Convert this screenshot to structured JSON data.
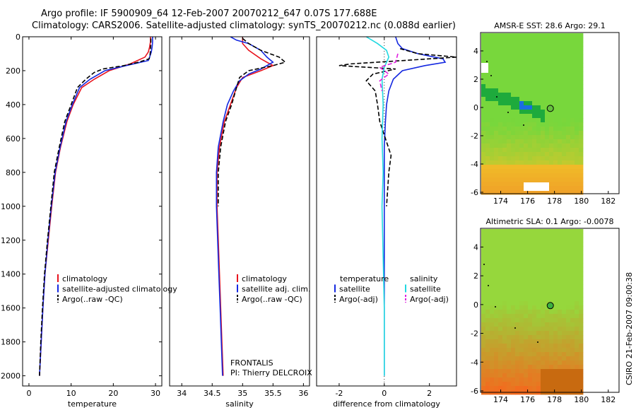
{
  "header": {
    "line1": "Argo profile: IF 5900909_64 12-Feb-2007 20070212_647 0.07S 177.688E",
    "line2": "Climatology: CARS2006. Satellite-adjusted climatology: synTS_20070212.nc (0.088d earlier)"
  },
  "side_label": "CSIRO 21-Feb-2007 09:00:38",
  "colors": {
    "climatology": "#e8141e",
    "satellite": "#1428e0",
    "argo": "#000000",
    "satellite_salinity": "#20d8e0",
    "argo_salinity_adj": "#e020e0"
  },
  "chart_data": [
    {
      "type": "line",
      "id": "temperature",
      "xlabel": "temperature",
      "ylabel": "",
      "xlim": [
        -1.5,
        31.5
      ],
      "ylim": [
        0,
        2060
      ],
      "xticks": [
        0,
        10,
        20,
        30
      ],
      "yticks": [
        0,
        200,
        400,
        600,
        800,
        1000,
        1200,
        1400,
        1600,
        1800,
        2000
      ],
      "y_reversed": true,
      "legend": [
        "climatology",
        "satellite-adjusted climatology",
        "Argo(..raw -QC)"
      ],
      "series": [
        {
          "name": "climatology",
          "color": "#e8141e",
          "dash": "",
          "points": [
            [
              28.8,
              0
            ],
            [
              28.8,
              30
            ],
            [
              28.6,
              60
            ],
            [
              28.3,
              90
            ],
            [
              27.5,
              120
            ],
            [
              24.0,
              160
            ],
            [
              19.0,
              200
            ],
            [
              15.5,
              250
            ],
            [
              12.5,
              300
            ],
            [
              10.5,
              400
            ],
            [
              9.0,
              500
            ],
            [
              7.5,
              650
            ],
            [
              6.3,
              800
            ],
            [
              5.4,
              1000
            ],
            [
              4.6,
              1200
            ],
            [
              3.8,
              1400
            ],
            [
              3.3,
              1600
            ],
            [
              2.9,
              1800
            ],
            [
              2.5,
              2000
            ]
          ]
        },
        {
          "name": "satellite-adjusted climatology",
          "color": "#1428e0",
          "dash": "",
          "points": [
            [
              29.3,
              0
            ],
            [
              29.3,
              30
            ],
            [
              29.2,
              60
            ],
            [
              29.0,
              90
            ],
            [
              28.6,
              120
            ],
            [
              28.3,
              140
            ],
            [
              23.0,
              170
            ],
            [
              18.0,
              200
            ],
            [
              14.5,
              250
            ],
            [
              12.0,
              300
            ],
            [
              10.3,
              400
            ],
            [
              8.8,
              500
            ],
            [
              7.4,
              650
            ],
            [
              6.2,
              800
            ],
            [
              5.3,
              1000
            ],
            [
              4.5,
              1200
            ],
            [
              3.8,
              1400
            ],
            [
              3.3,
              1600
            ],
            [
              2.9,
              1800
            ],
            [
              2.5,
              2000
            ]
          ]
        },
        {
          "name": "Argo(..raw -QC)",
          "color": "#000000",
          "dash": "6,3",
          "points": [
            [
              28.9,
              10
            ],
            [
              28.9,
              40
            ],
            [
              28.8,
              80
            ],
            [
              28.7,
              110
            ],
            [
              28.5,
              130
            ],
            [
              26.0,
              150
            ],
            [
              22.5,
              170
            ],
            [
              17.5,
              190
            ],
            [
              15.5,
              210
            ],
            [
              13.5,
              250
            ],
            [
              11.5,
              300
            ],
            [
              10.0,
              400
            ],
            [
              8.5,
              500
            ],
            [
              7.2,
              650
            ],
            [
              6.0,
              800
            ],
            [
              5.2,
              1000
            ],
            [
              4.4,
              1200
            ],
            [
              3.7,
              1400
            ],
            [
              3.2,
              1600
            ],
            [
              2.8,
              1800
            ],
            [
              2.5,
              2000
            ]
          ]
        }
      ]
    },
    {
      "type": "line",
      "id": "salinity",
      "xlabel": "salinity",
      "ylabel": "",
      "xlim": [
        33.8,
        36.1
      ],
      "ylim": [
        0,
        2060
      ],
      "xticks": [
        34,
        34.5,
        35,
        35.5,
        36
      ],
      "yticks": [],
      "y_reversed": true,
      "legend": [
        "climatology",
        "satellite adj. clim.",
        "Argo(..raw -QC)"
      ],
      "annotation": [
        "FRONTALIS",
        "PI: Thierry DELCROIX"
      ],
      "series": [
        {
          "name": "climatology",
          "color": "#e8141e",
          "dash": "",
          "points": [
            [
              35.0,
              0
            ],
            [
              35.0,
              40
            ],
            [
              35.1,
              80
            ],
            [
              35.3,
              130
            ],
            [
              35.5,
              170
            ],
            [
              35.3,
              200
            ],
            [
              35.0,
              240
            ],
            [
              34.9,
              300
            ],
            [
              34.8,
              400
            ],
            [
              34.7,
              500
            ],
            [
              34.62,
              650
            ],
            [
              34.58,
              800
            ],
            [
              34.58,
              1000
            ],
            [
              34.6,
              1200
            ],
            [
              34.62,
              1400
            ],
            [
              34.64,
              1600
            ],
            [
              34.66,
              1800
            ],
            [
              34.68,
              2000
            ]
          ]
        },
        {
          "name": "satellite adj. clim.",
          "color": "#1428e0",
          "dash": "",
          "points": [
            [
              34.8,
              0
            ],
            [
              34.9,
              20
            ],
            [
              35.1,
              40
            ],
            [
              35.3,
              80
            ],
            [
              35.4,
              120
            ],
            [
              35.5,
              150
            ],
            [
              35.3,
              190
            ],
            [
              35.1,
              220
            ],
            [
              34.95,
              260
            ],
            [
              34.85,
              320
            ],
            [
              34.75,
              400
            ],
            [
              34.68,
              500
            ],
            [
              34.6,
              650
            ],
            [
              34.57,
              800
            ],
            [
              34.57,
              1000
            ],
            [
              34.59,
              1200
            ],
            [
              34.61,
              1400
            ],
            [
              34.63,
              1600
            ],
            [
              34.65,
              1800
            ],
            [
              34.67,
              2000
            ]
          ]
        },
        {
          "name": "Argo(..raw -QC)",
          "color": "#000000",
          "dash": "6,3",
          "points": [
            [
              35.0,
              10
            ],
            [
              35.1,
              40
            ],
            [
              35.3,
              80
            ],
            [
              35.6,
              120
            ],
            [
              35.7,
              150
            ],
            [
              35.5,
              170
            ],
            [
              35.1,
              200
            ],
            [
              34.95,
              240
            ],
            [
              34.9,
              300
            ],
            [
              34.82,
              400
            ],
            [
              34.72,
              500
            ],
            [
              34.64,
              650
            ],
            [
              34.6,
              800
            ],
            [
              34.6,
              1000
            ]
          ]
        }
      ]
    },
    {
      "type": "line",
      "id": "difference",
      "xlabel": "difference from climatology",
      "ylabel": "",
      "xlim": [
        -3.0,
        3.2
      ],
      "ylim": [
        0,
        2060
      ],
      "xticks": [
        -2,
        0,
        2
      ],
      "yticks": [],
      "y_reversed": true,
      "legend_groups": [
        {
          "header": "temperature",
          "items": [
            "satellite",
            "Argo(-adj)"
          ]
        },
        {
          "header": "salinity",
          "items": [
            "satellite",
            "Argo(-adj)"
          ]
        }
      ],
      "series": [
        {
          "name": "satellite (temperature)",
          "color": "#1428e0",
          "dash": "",
          "points": [
            [
              0.5,
              0
            ],
            [
              0.6,
              40
            ],
            [
              0.8,
              70
            ],
            [
              1.5,
              100
            ],
            [
              2.6,
              130
            ],
            [
              2.7,
              150
            ],
            [
              1.8,
              170
            ],
            [
              0.8,
              200
            ],
            [
              0.4,
              250
            ],
            [
              0.2,
              320
            ],
            [
              0.1,
              400
            ],
            [
              0.05,
              500
            ],
            [
              0.0,
              650
            ],
            [
              0.0,
              1000
            ],
            [
              0.0,
              1500
            ],
            [
              0.0,
              2000
            ]
          ]
        },
        {
          "name": "Argo(-adj) (temperature)",
          "color": "#000000",
          "dash": "6,3",
          "points": [
            [
              0.7,
              70
            ],
            [
              1.5,
              100
            ],
            [
              3.2,
              120
            ],
            [
              -1.5,
              160
            ],
            [
              -2.0,
              170
            ],
            [
              0.5,
              190
            ],
            [
              -0.5,
              220
            ],
            [
              -0.8,
              260
            ],
            [
              -0.4,
              320
            ],
            [
              -0.3,
              400
            ],
            [
              -0.2,
              500
            ],
            [
              0.3,
              700
            ],
            [
              0.2,
              800
            ],
            [
              0.1,
              1000
            ]
          ]
        },
        {
          "name": "satellite (salinity)",
          "color": "#20d8e0",
          "dash": "",
          "points": [
            [
              -0.8,
              0
            ],
            [
              -0.3,
              40
            ],
            [
              0.1,
              80
            ],
            [
              0.2,
              120
            ],
            [
              0.0,
              180
            ],
            [
              -0.1,
              250
            ],
            [
              -0.05,
              400
            ],
            [
              -0.1,
              600
            ],
            [
              -0.05,
              800
            ],
            [
              -0.1,
              1000
            ],
            [
              -0.05,
              1300
            ],
            [
              0.0,
              1600
            ],
            [
              0.0,
              2000
            ]
          ]
        },
        {
          "name": "Argo(-adj) (salinity)",
          "color": "#e020e0",
          "dash": "6,3",
          "points": [
            [
              0.6,
              100
            ],
            [
              0.5,
              150
            ],
            [
              -0.2,
              180
            ],
            [
              0.2,
              220
            ],
            [
              -0.2,
              260
            ],
            [
              -0.1,
              320
            ]
          ]
        }
      ]
    },
    {
      "type": "heatmap",
      "id": "sst-map",
      "title": "AMSR-E SST: 28.6 Argo: 29.1",
      "xlim": [
        172.5,
        182.8
      ],
      "ylim": [
        -6.1,
        5.3
      ],
      "xticks": [
        174,
        176,
        178,
        180,
        182
      ],
      "yticks": [
        4,
        2,
        0,
        -2,
        -4,
        -6
      ],
      "marker": [
        177.688,
        -0.07
      ]
    },
    {
      "type": "heatmap",
      "id": "sla-map",
      "title": "Altimetric SLA: 0.1 Argo: -0.0078",
      "xlim": [
        172.5,
        182.8
      ],
      "ylim": [
        -6.1,
        5.3
      ],
      "xticks": [
        174,
        176,
        178,
        180,
        182
      ],
      "yticks": [
        4,
        2,
        0,
        -2,
        -4,
        -6
      ],
      "marker": [
        177.688,
        -0.07
      ]
    }
  ]
}
